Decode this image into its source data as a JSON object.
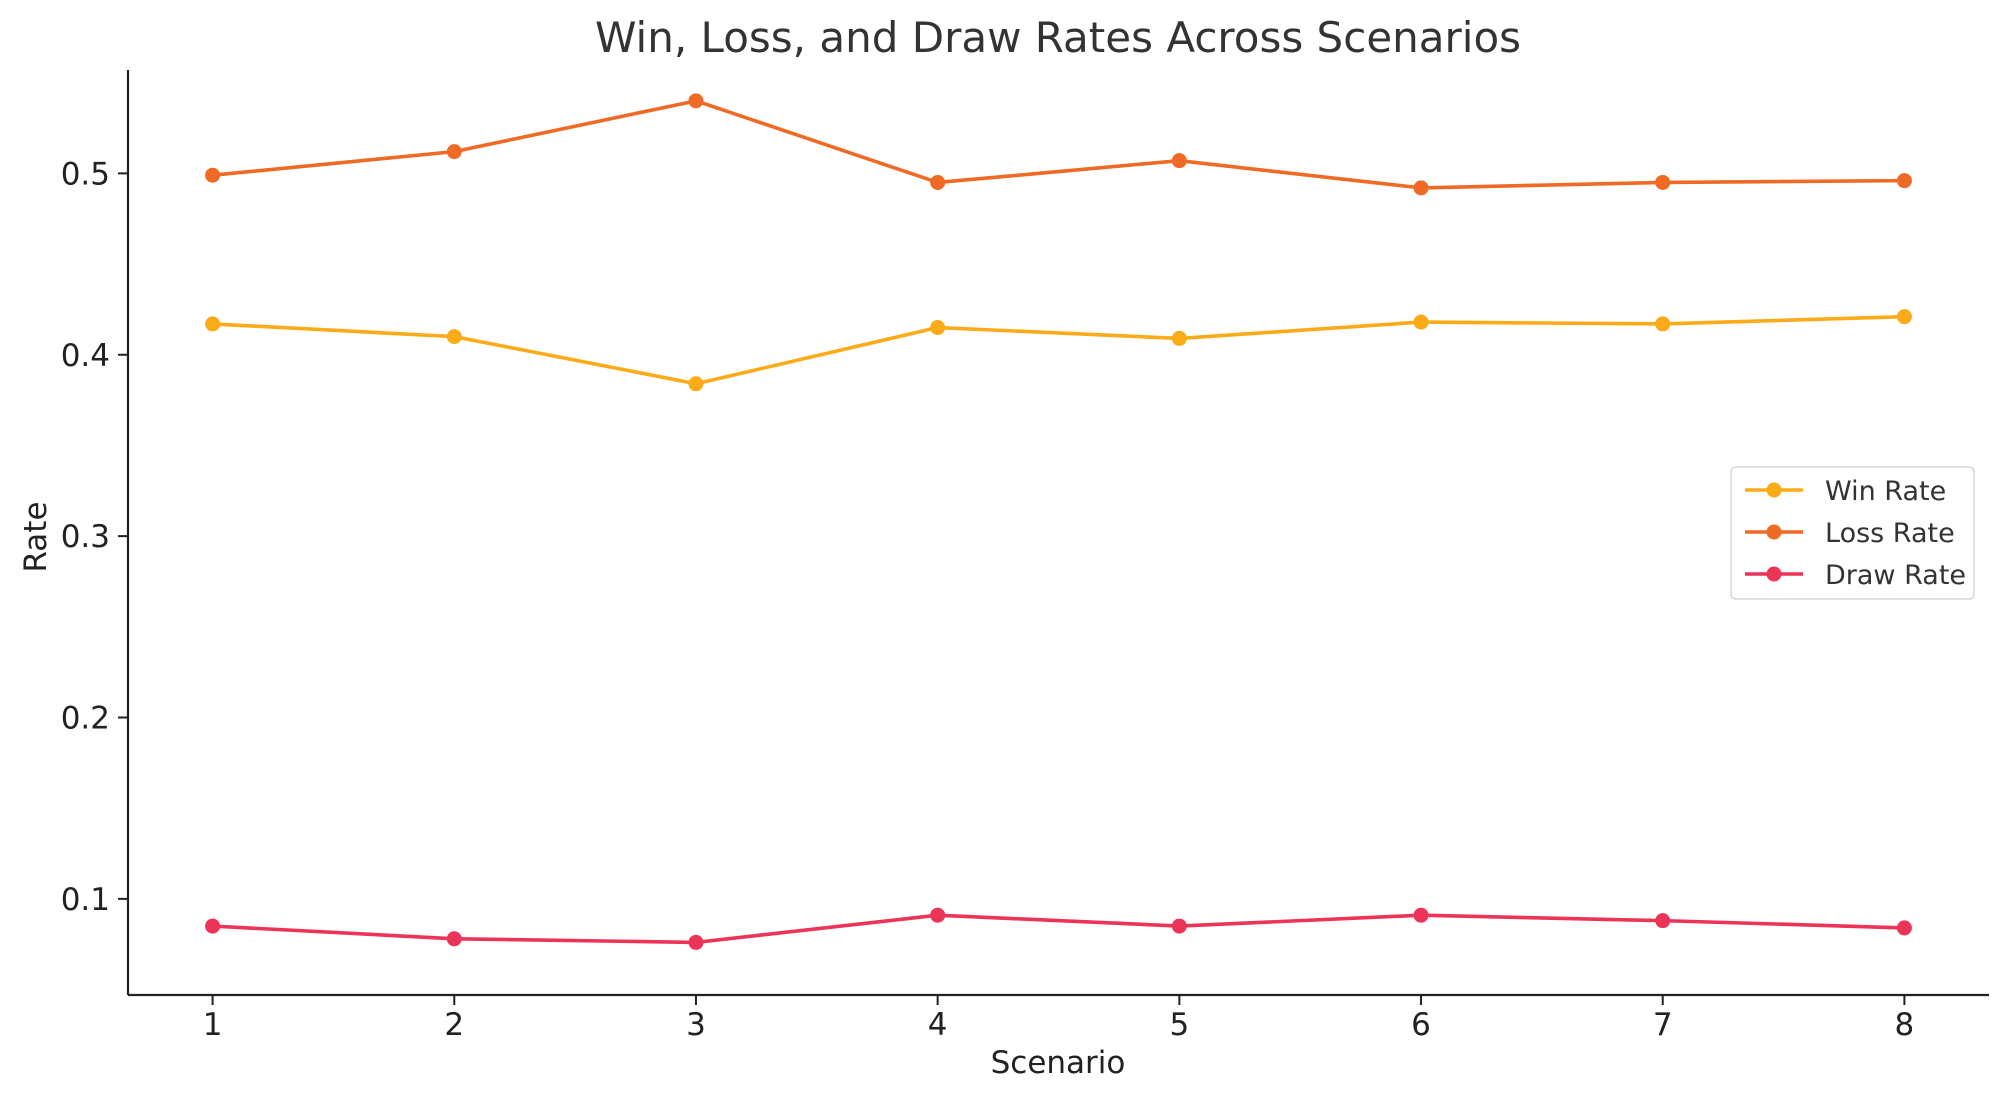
{
  "chart_data": {
    "type": "line",
    "title": "Win, Loss, and Draw Rates Across Scenarios",
    "xlabel": "Scenario",
    "ylabel": "Rate",
    "x": [
      1,
      2,
      3,
      4,
      5,
      6,
      7,
      8
    ],
    "x_ticks": [
      "1",
      "2",
      "3",
      "4",
      "5",
      "6",
      "7",
      "8"
    ],
    "xlim": [
      0.65,
      8.35
    ],
    "ylim": [
      0.047,
      0.557
    ],
    "y_ticks": [
      0.1,
      0.2,
      0.3,
      0.4,
      0.5
    ],
    "y_tick_labels": [
      "0.1",
      "0.2",
      "0.3",
      "0.4",
      "0.5"
    ],
    "grid": false,
    "legend_position": "center-right",
    "series": [
      {
        "name": "Win Rate",
        "color": "#FBAA18",
        "values": [
          0.417,
          0.41,
          0.384,
          0.415,
          0.409,
          0.418,
          0.417,
          0.421
        ]
      },
      {
        "name": "Loss Rate",
        "color": "#EF6A24",
        "values": [
          0.499,
          0.512,
          0.54,
          0.495,
          0.507,
          0.492,
          0.495,
          0.496
        ]
      },
      {
        "name": "Draw Rate",
        "color": "#EC3358",
        "values": [
          0.085,
          0.078,
          0.076,
          0.091,
          0.085,
          0.091,
          0.088,
          0.084
        ]
      }
    ]
  }
}
